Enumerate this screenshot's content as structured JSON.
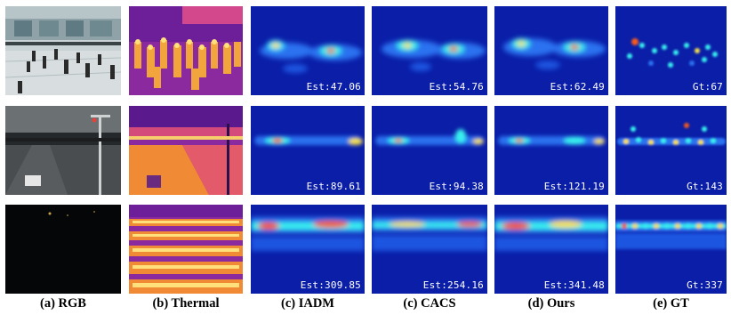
{
  "columns": [
    {
      "caption": "(a) RGB"
    },
    {
      "caption": "(b) Thermal"
    },
    {
      "caption": "(c) IADM"
    },
    {
      "caption": "(c) CACS"
    },
    {
      "caption": "(d) Ours"
    },
    {
      "caption": "(e) GT"
    }
  ],
  "rows": [
    {
      "labels": [
        "Est:47.06",
        "Est:54.76",
        "Est:62.49",
        "Gt:67"
      ]
    },
    {
      "labels": [
        "Est:89.61",
        "Est:94.38",
        "Est:121.19",
        "Gt:143"
      ]
    },
    {
      "labels": [
        "Est:309.85",
        "Est:254.16",
        "Est:341.48",
        "Gt:337"
      ]
    }
  ],
  "colors": {
    "density_bg": "#0a1ea8",
    "thermal_bg": "#8a2a9e",
    "background": "#ffffff"
  }
}
